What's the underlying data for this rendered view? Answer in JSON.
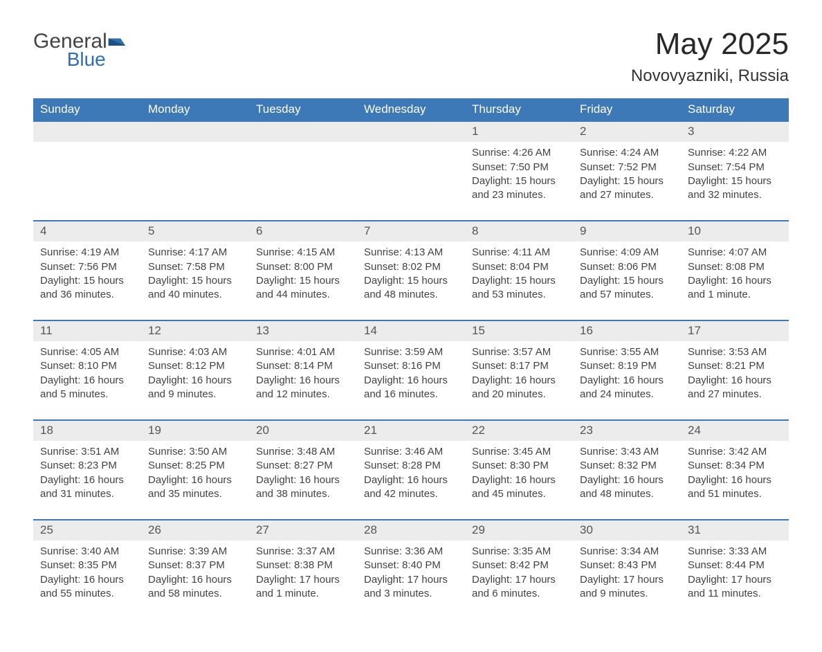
{
  "brand": {
    "part1": "General",
    "part2": "Blue"
  },
  "title": "May 2025",
  "location": "Novovyazniki, Russia",
  "colors": {
    "header_bg": "#3d79b6",
    "header_text": "#ffffff",
    "daynum_bg": "#ececec",
    "row_divider": "#3d79b6",
    "body_text": "#424242",
    "title_text": "#282828",
    "brand_blue": "#2f6fb0",
    "page_bg": "#ffffff"
  },
  "fonts": {
    "family": "Arial",
    "title_size_pt": 33,
    "subtitle_size_pt": 18,
    "header_size_pt": 13,
    "daynum_size_pt": 13,
    "detail_size_pt": 11
  },
  "calendar": {
    "type": "table",
    "columns": [
      "Sunday",
      "Monday",
      "Tuesday",
      "Wednesday",
      "Thursday",
      "Friday",
      "Saturday"
    ],
    "weeks": [
      {
        "days": [
          null,
          null,
          null,
          null,
          {
            "n": "1",
            "sunrise": "4:26 AM",
            "sunset": "7:50 PM",
            "daylight": "15 hours and 23 minutes."
          },
          {
            "n": "2",
            "sunrise": "4:24 AM",
            "sunset": "7:52 PM",
            "daylight": "15 hours and 27 minutes."
          },
          {
            "n": "3",
            "sunrise": "4:22 AM",
            "sunset": "7:54 PM",
            "daylight": "15 hours and 32 minutes."
          }
        ]
      },
      {
        "days": [
          {
            "n": "4",
            "sunrise": "4:19 AM",
            "sunset": "7:56 PM",
            "daylight": "15 hours and 36 minutes."
          },
          {
            "n": "5",
            "sunrise": "4:17 AM",
            "sunset": "7:58 PM",
            "daylight": "15 hours and 40 minutes."
          },
          {
            "n": "6",
            "sunrise": "4:15 AM",
            "sunset": "8:00 PM",
            "daylight": "15 hours and 44 minutes."
          },
          {
            "n": "7",
            "sunrise": "4:13 AM",
            "sunset": "8:02 PM",
            "daylight": "15 hours and 48 minutes."
          },
          {
            "n": "8",
            "sunrise": "4:11 AM",
            "sunset": "8:04 PM",
            "daylight": "15 hours and 53 minutes."
          },
          {
            "n": "9",
            "sunrise": "4:09 AM",
            "sunset": "8:06 PM",
            "daylight": "15 hours and 57 minutes."
          },
          {
            "n": "10",
            "sunrise": "4:07 AM",
            "sunset": "8:08 PM",
            "daylight": "16 hours and 1 minute."
          }
        ]
      },
      {
        "days": [
          {
            "n": "11",
            "sunrise": "4:05 AM",
            "sunset": "8:10 PM",
            "daylight": "16 hours and 5 minutes."
          },
          {
            "n": "12",
            "sunrise": "4:03 AM",
            "sunset": "8:12 PM",
            "daylight": "16 hours and 9 minutes."
          },
          {
            "n": "13",
            "sunrise": "4:01 AM",
            "sunset": "8:14 PM",
            "daylight": "16 hours and 12 minutes."
          },
          {
            "n": "14",
            "sunrise": "3:59 AM",
            "sunset": "8:16 PM",
            "daylight": "16 hours and 16 minutes."
          },
          {
            "n": "15",
            "sunrise": "3:57 AM",
            "sunset": "8:17 PM",
            "daylight": "16 hours and 20 minutes."
          },
          {
            "n": "16",
            "sunrise": "3:55 AM",
            "sunset": "8:19 PM",
            "daylight": "16 hours and 24 minutes."
          },
          {
            "n": "17",
            "sunrise": "3:53 AM",
            "sunset": "8:21 PM",
            "daylight": "16 hours and 27 minutes."
          }
        ]
      },
      {
        "days": [
          {
            "n": "18",
            "sunrise": "3:51 AM",
            "sunset": "8:23 PM",
            "daylight": "16 hours and 31 minutes."
          },
          {
            "n": "19",
            "sunrise": "3:50 AM",
            "sunset": "8:25 PM",
            "daylight": "16 hours and 35 minutes."
          },
          {
            "n": "20",
            "sunrise": "3:48 AM",
            "sunset": "8:27 PM",
            "daylight": "16 hours and 38 minutes."
          },
          {
            "n": "21",
            "sunrise": "3:46 AM",
            "sunset": "8:28 PM",
            "daylight": "16 hours and 42 minutes."
          },
          {
            "n": "22",
            "sunrise": "3:45 AM",
            "sunset": "8:30 PM",
            "daylight": "16 hours and 45 minutes."
          },
          {
            "n": "23",
            "sunrise": "3:43 AM",
            "sunset": "8:32 PM",
            "daylight": "16 hours and 48 minutes."
          },
          {
            "n": "24",
            "sunrise": "3:42 AM",
            "sunset": "8:34 PM",
            "daylight": "16 hours and 51 minutes."
          }
        ]
      },
      {
        "days": [
          {
            "n": "25",
            "sunrise": "3:40 AM",
            "sunset": "8:35 PM",
            "daylight": "16 hours and 55 minutes."
          },
          {
            "n": "26",
            "sunrise": "3:39 AM",
            "sunset": "8:37 PM",
            "daylight": "16 hours and 58 minutes."
          },
          {
            "n": "27",
            "sunrise": "3:37 AM",
            "sunset": "8:38 PM",
            "daylight": "17 hours and 1 minute."
          },
          {
            "n": "28",
            "sunrise": "3:36 AM",
            "sunset": "8:40 PM",
            "daylight": "17 hours and 3 minutes."
          },
          {
            "n": "29",
            "sunrise": "3:35 AM",
            "sunset": "8:42 PM",
            "daylight": "17 hours and 6 minutes."
          },
          {
            "n": "30",
            "sunrise": "3:34 AM",
            "sunset": "8:43 PM",
            "daylight": "17 hours and 9 minutes."
          },
          {
            "n": "31",
            "sunrise": "3:33 AM",
            "sunset": "8:44 PM",
            "daylight": "17 hours and 11 minutes."
          }
        ]
      }
    ],
    "labels": {
      "sunrise": "Sunrise",
      "sunset": "Sunset",
      "daylight": "Daylight"
    }
  }
}
